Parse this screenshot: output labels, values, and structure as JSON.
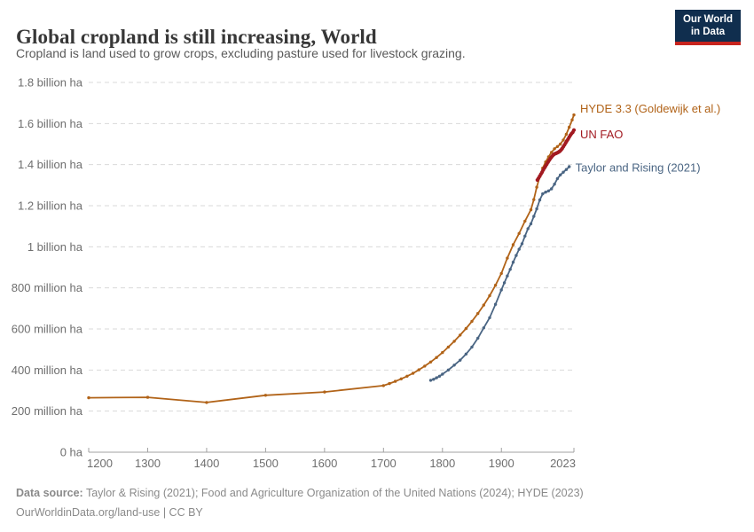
{
  "header": {
    "title": "Global cropland is still increasing, World",
    "subtitle": "Cropland is land used to grow crops, excluding pasture used for livestock grazing."
  },
  "logo": {
    "line1": "Our World",
    "line2": "in Data",
    "bg_color": "#102E4E",
    "stripe_color": "#C7241E"
  },
  "chart_data": {
    "type": "line",
    "title": "Global cropland is still increasing, World",
    "xlabel": "",
    "ylabel": "",
    "unit": "ha",
    "grid": "horizontal-dashed",
    "legend_position": "right-of-line-ends",
    "x_axis": {
      "min": 1200,
      "max": 2023,
      "ticks": [
        1200,
        1300,
        1400,
        1500,
        1600,
        1700,
        1800,
        1900,
        2023
      ]
    },
    "y_axis": {
      "min": 0,
      "max": 1800,
      "unit_of_values": "million ha",
      "ticks": [
        {
          "value": 0,
          "label": "0 ha"
        },
        {
          "value": 200,
          "label": "200 million ha"
        },
        {
          "value": 400,
          "label": "400 million ha"
        },
        {
          "value": 600,
          "label": "600 million ha"
        },
        {
          "value": 800,
          "label": "800 million ha"
        },
        {
          "value": 1000,
          "label": "1 billion ha"
        },
        {
          "value": 1200,
          "label": "1.2 billion ha"
        },
        {
          "value": 1400,
          "label": "1.4 billion ha"
        },
        {
          "value": 1600,
          "label": "1.6 billion ha"
        },
        {
          "value": 1800,
          "label": "1.8 billion ha"
        }
      ]
    },
    "series": [
      {
        "name": "HYDE 3.3 (Goldewijk et al.)",
        "color": "#B16318",
        "line_width": 1.8,
        "marker_radius": 1.7,
        "label_offset_y": -7,
        "points_unit": "million ha",
        "points": [
          [
            1200,
            265
          ],
          [
            1300,
            267
          ],
          [
            1400,
            242
          ],
          [
            1500,
            277
          ],
          [
            1600,
            293
          ],
          [
            1700,
            324
          ],
          [
            1710,
            334
          ],
          [
            1720,
            345
          ],
          [
            1730,
            357
          ],
          [
            1740,
            370
          ],
          [
            1750,
            384
          ],
          [
            1760,
            401
          ],
          [
            1770,
            419
          ],
          [
            1780,
            439
          ],
          [
            1790,
            461
          ],
          [
            1800,
            485
          ],
          [
            1810,
            512
          ],
          [
            1820,
            540
          ],
          [
            1830,
            570
          ],
          [
            1840,
            602
          ],
          [
            1850,
            637
          ],
          [
            1860,
            675
          ],
          [
            1870,
            716
          ],
          [
            1880,
            762
          ],
          [
            1890,
            813
          ],
          [
            1900,
            870
          ],
          [
            1910,
            945
          ],
          [
            1920,
            1010
          ],
          [
            1930,
            1065
          ],
          [
            1940,
            1125
          ],
          [
            1950,
            1180
          ],
          [
            1955,
            1230
          ],
          [
            1960,
            1290
          ],
          [
            1965,
            1342
          ],
          [
            1970,
            1383
          ],
          [
            1975,
            1413
          ],
          [
            1980,
            1438
          ],
          [
            1985,
            1460
          ],
          [
            1990,
            1477
          ],
          [
            1995,
            1488
          ],
          [
            2000,
            1500
          ],
          [
            2005,
            1520
          ],
          [
            2010,
            1548
          ],
          [
            2015,
            1582
          ],
          [
            2020,
            1618
          ],
          [
            2023,
            1642
          ]
        ]
      },
      {
        "name": "UN FAO",
        "color": "#A21A21",
        "line_width": 3.2,
        "marker_radius": 2.1,
        "label_offset_y": 5,
        "points_unit": "million ha",
        "points": [
          [
            1961,
            1325
          ],
          [
            1963,
            1334
          ],
          [
            1965,
            1344
          ],
          [
            1967,
            1354
          ],
          [
            1969,
            1363
          ],
          [
            1971,
            1374
          ],
          [
            1973,
            1384
          ],
          [
            1975,
            1393
          ],
          [
            1977,
            1402
          ],
          [
            1979,
            1412
          ],
          [
            1981,
            1421
          ],
          [
            1983,
            1429
          ],
          [
            1985,
            1437
          ],
          [
            1987,
            1444
          ],
          [
            1989,
            1450
          ],
          [
            1991,
            1453
          ],
          [
            1993,
            1455
          ],
          [
            1995,
            1458
          ],
          [
            1997,
            1461
          ],
          [
            1999,
            1465
          ],
          [
            2001,
            1471
          ],
          [
            2003,
            1478
          ],
          [
            2005,
            1487
          ],
          [
            2007,
            1496
          ],
          [
            2009,
            1506
          ],
          [
            2011,
            1515
          ],
          [
            2013,
            1524
          ],
          [
            2015,
            1534
          ],
          [
            2017,
            1543
          ],
          [
            2019,
            1551
          ],
          [
            2021,
            1558
          ],
          [
            2023,
            1568
          ]
        ]
      },
      {
        "name": "Taylor and Rising (2021)",
        "color": "#4A6583",
        "line_width": 1.8,
        "marker_radius": 1.7,
        "label_offset_y": 1,
        "points_unit": "million ha",
        "points": [
          [
            1780,
            350
          ],
          [
            1785,
            355
          ],
          [
            1790,
            362
          ],
          [
            1795,
            370
          ],
          [
            1800,
            380
          ],
          [
            1810,
            400
          ],
          [
            1820,
            424
          ],
          [
            1830,
            448
          ],
          [
            1840,
            478
          ],
          [
            1850,
            512
          ],
          [
            1860,
            555
          ],
          [
            1870,
            605
          ],
          [
            1880,
            655
          ],
          [
            1890,
            720
          ],
          [
            1900,
            790
          ],
          [
            1905,
            825
          ],
          [
            1910,
            858
          ],
          [
            1915,
            890
          ],
          [
            1920,
            925
          ],
          [
            1925,
            958
          ],
          [
            1930,
            988
          ],
          [
            1935,
            1015
          ],
          [
            1940,
            1052
          ],
          [
            1945,
            1088
          ],
          [
            1950,
            1112
          ],
          [
            1955,
            1148
          ],
          [
            1960,
            1185
          ],
          [
            1965,
            1228
          ],
          [
            1970,
            1258
          ],
          [
            1975,
            1266
          ],
          [
            1980,
            1272
          ],
          [
            1985,
            1282
          ],
          [
            1990,
            1305
          ],
          [
            1995,
            1332
          ],
          [
            2000,
            1350
          ],
          [
            2005,
            1363
          ],
          [
            2010,
            1376
          ],
          [
            2015,
            1390
          ]
        ]
      }
    ]
  },
  "footer": {
    "source_label": "Data source:",
    "source_text": " Taylor & Rising (2021); Food and Agriculture Organization of the United Nations (2024); HYDE (2023)",
    "license_text": "OurWorldinData.org/land-use | CC BY"
  }
}
